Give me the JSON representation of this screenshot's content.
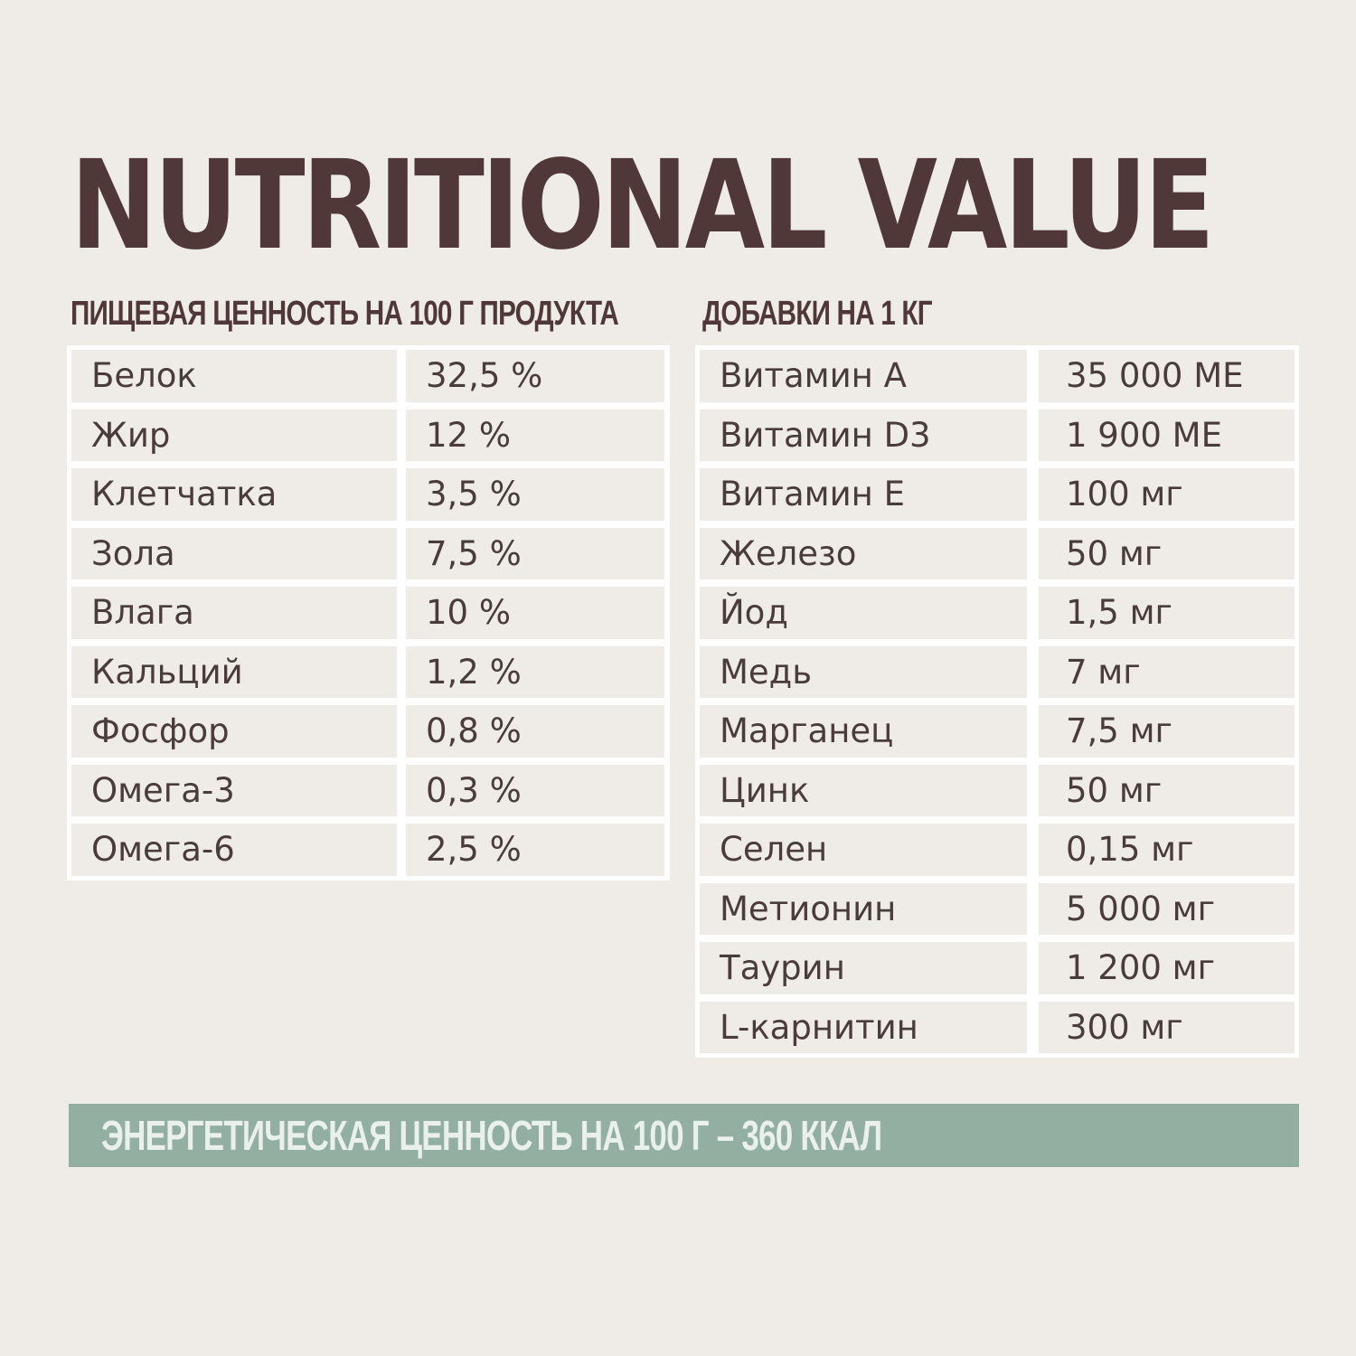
{
  "title": "NUTRITIONAL VALUE",
  "nutrition": {
    "heading": "ПИЩЕВАЯ ЦЕННОСТЬ НА 100 Г ПРОДУКТА",
    "rows": [
      {
        "name": "Белок",
        "value": "32,5 %"
      },
      {
        "name": "Жир",
        "value": "12 %"
      },
      {
        "name": "Клетчатка",
        "value": "3,5 %"
      },
      {
        "name": "Зола",
        "value": "7,5 %"
      },
      {
        "name": "Влага",
        "value": "10 %"
      },
      {
        "name": "Кальций",
        "value": "1,2 %"
      },
      {
        "name": "Фосфор",
        "value": "0,8 %"
      },
      {
        "name": "Омега-3",
        "value": "0,3 %"
      },
      {
        "name": "Омега-6",
        "value": "2,5 %"
      }
    ]
  },
  "additives": {
    "heading": "ДОБАВКИ НА 1 КГ",
    "rows": [
      {
        "name": "Витамин А",
        "value": "35 000 МЕ"
      },
      {
        "name": "Витамин D3",
        "value": "1 900 МЕ"
      },
      {
        "name": "Витамин Е",
        "value": "100 мг"
      },
      {
        "name": "Железо",
        "value": "50 мг"
      },
      {
        "name": "Йод",
        "value": "1,5 мг"
      },
      {
        "name": "Медь",
        "value": "7 мг"
      },
      {
        "name": "Марганец",
        "value": "7,5 мг"
      },
      {
        "name": "Цинк",
        "value": "50 мг"
      },
      {
        "name": "Селен",
        "value": "0,15 мг"
      },
      {
        "name": "Метионин",
        "value": "5 000 мг"
      },
      {
        "name": "Таурин",
        "value": "1 200 мг"
      },
      {
        "name": "L-карнитин",
        "value": "300 мг"
      }
    ]
  },
  "energy": "ЭНЕРГЕТИЧЕСКАЯ ЦЕННОСТЬ НА 100 Г – 360 ККАЛ",
  "colors": {
    "title": "#4f3837",
    "background": "#efece8",
    "energy_bar": "#93afa2",
    "energy_text": "#eaf1ec"
  }
}
